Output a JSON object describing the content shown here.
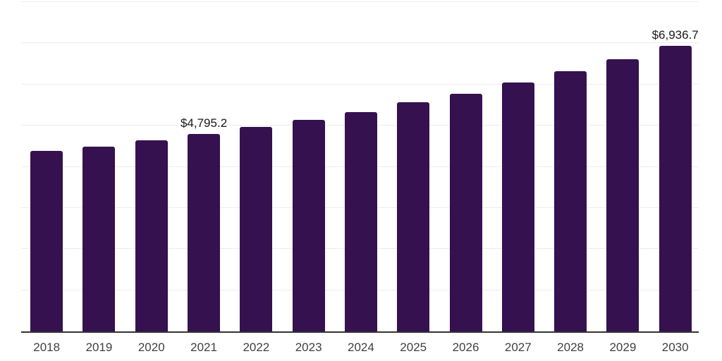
{
  "chart_data": {
    "type": "bar",
    "title": "",
    "xlabel": "",
    "ylabel": "",
    "categories": [
      "2018",
      "2019",
      "2020",
      "2021",
      "2022",
      "2023",
      "2024",
      "2025",
      "2026",
      "2027",
      "2028",
      "2029",
      "2030"
    ],
    "values": [
      4390,
      4490,
      4635,
      4795.2,
      4965,
      5135,
      5335,
      5570,
      5780,
      6050,
      6325,
      6610,
      6936.7
    ],
    "data_labels": [
      "",
      "",
      "",
      "$4,795.2",
      "",
      "",
      "",
      "",
      "",
      "",
      "",
      "",
      "$6,936.7"
    ],
    "ylim": [
      0,
      8000
    ],
    "gridline_step": 1000,
    "grid": true,
    "legend": false,
    "y_tick_labels_visible": false,
    "colors": {
      "bar": "#351150",
      "gridline": "#ededed",
      "axis_line": "#333333",
      "x_tick_label": "#404040",
      "data_label": "#1a1a1a",
      "background": "#ffffff"
    }
  }
}
